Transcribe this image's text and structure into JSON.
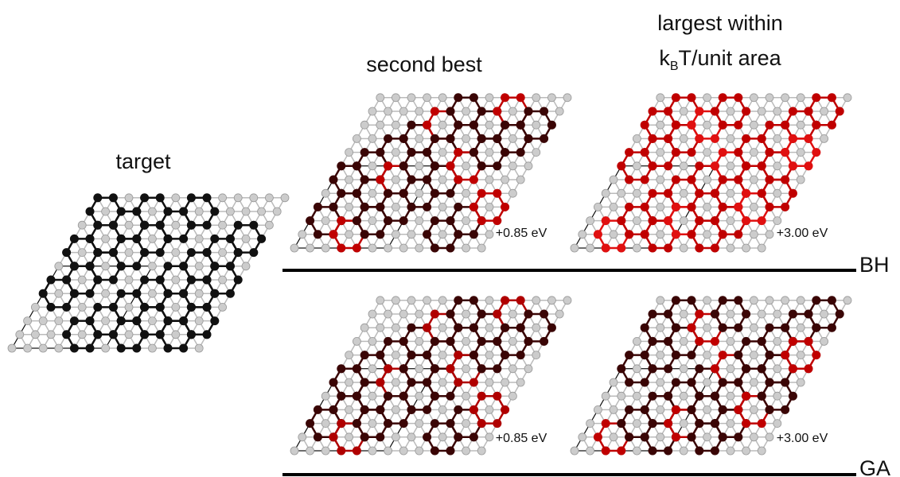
{
  "columns": {
    "target": "target",
    "second_best": "second best",
    "largest": {
      "line1": "largest within",
      "k": "k",
      "sub": "B",
      "rest": "T/unit area"
    }
  },
  "rows": [
    {
      "label": "BH",
      "energies": [
        "+0.85 eV",
        "+3.00 eV"
      ]
    },
    {
      "label": "GA",
      "energies": [
        "+0.85 eV",
        "+3.00 eV"
      ]
    }
  ]
}
